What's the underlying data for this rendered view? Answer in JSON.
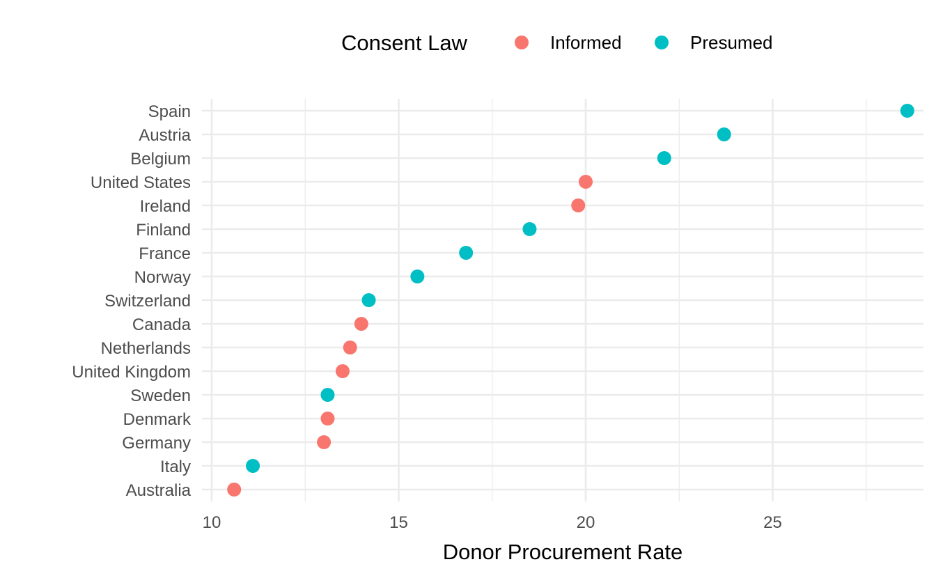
{
  "chart_data": {
    "type": "scatter",
    "title": "",
    "xlabel": "Donor Procurement Rate",
    "ylabel": "",
    "xlim": [
      9.8,
      28.8
    ],
    "x_ticks": [
      10,
      15,
      20,
      25
    ],
    "x_minor_ticks": [
      12.5,
      17.5,
      22.5,
      27.5
    ],
    "grid": true,
    "legend": {
      "title": "Consent Law",
      "position": "top",
      "entries": [
        {
          "label": "Informed",
          "color": "#F8766D"
        },
        {
          "label": "Presumed",
          "color": "#00BFC4"
        }
      ]
    },
    "categories": [
      "Spain",
      "Austria",
      "Belgium",
      "United States",
      "Ireland",
      "Finland",
      "France",
      "Norway",
      "Switzerland",
      "Canada",
      "Netherlands",
      "United Kingdom",
      "Sweden",
      "Denmark",
      "Germany",
      "Italy",
      "Australia"
    ],
    "points": [
      {
        "country": "Spain",
        "value": 28.6,
        "consent": "Presumed"
      },
      {
        "country": "Austria",
        "value": 23.7,
        "consent": "Presumed"
      },
      {
        "country": "Belgium",
        "value": 22.1,
        "consent": "Presumed"
      },
      {
        "country": "United States",
        "value": 20.0,
        "consent": "Informed"
      },
      {
        "country": "Ireland",
        "value": 19.8,
        "consent": "Informed"
      },
      {
        "country": "Finland",
        "value": 18.5,
        "consent": "Presumed"
      },
      {
        "country": "France",
        "value": 16.8,
        "consent": "Presumed"
      },
      {
        "country": "Norway",
        "value": 15.5,
        "consent": "Presumed"
      },
      {
        "country": "Switzerland",
        "value": 14.2,
        "consent": "Presumed"
      },
      {
        "country": "Canada",
        "value": 14.0,
        "consent": "Informed"
      },
      {
        "country": "Netherlands",
        "value": 13.7,
        "consent": "Informed"
      },
      {
        "country": "United Kingdom",
        "value": 13.5,
        "consent": "Informed"
      },
      {
        "country": "Sweden",
        "value": 13.1,
        "consent": "Presumed"
      },
      {
        "country": "Denmark",
        "value": 13.1,
        "consent": "Informed"
      },
      {
        "country": "Germany",
        "value": 13.0,
        "consent": "Informed"
      },
      {
        "country": "Italy",
        "value": 11.1,
        "consent": "Presumed"
      },
      {
        "country": "Australia",
        "value": 10.6,
        "consent": "Informed"
      }
    ]
  }
}
